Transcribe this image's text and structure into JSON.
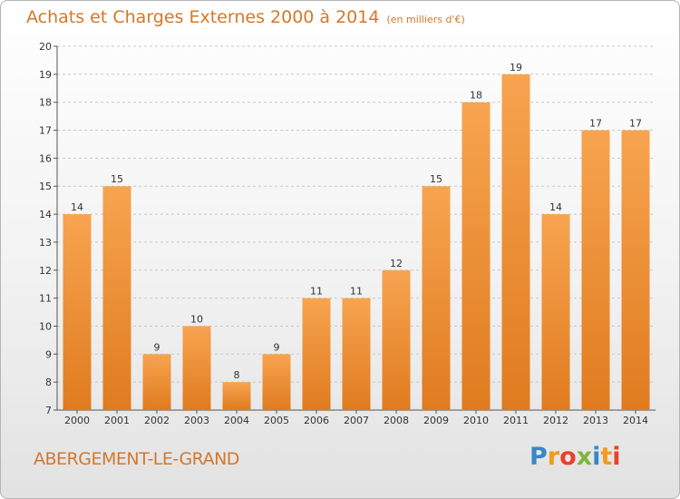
{
  "header": {
    "title": "Achats et Charges Externes 2000 à 2014",
    "subtitle": "(en milliers d'€)"
  },
  "footer": {
    "commune": "ABERGEMENT-LE-GRAND",
    "logo_letters": [
      "P",
      "r",
      "o",
      "x",
      "i",
      "t",
      "i"
    ],
    "logo_colors": [
      "#3a86c8",
      "#f29b1d",
      "#e8412c",
      "#7cb83a",
      "#3a86c8",
      "#f29b1d",
      "#e8412c"
    ]
  },
  "colors": {
    "accent": "#d4782a",
    "bar_top": "#f7a450",
    "bar_bottom": "#e07b1f"
  },
  "chart_data": {
    "type": "bar",
    "title": "Achats et Charges Externes 2000 à 2014",
    "subtitle": "(en milliers d'€)",
    "categories": [
      "2000",
      "2001",
      "2002",
      "2003",
      "2004",
      "2005",
      "2006",
      "2007",
      "2008",
      "2009",
      "2010",
      "2011",
      "2012",
      "2013",
      "2014"
    ],
    "values": [
      14,
      15,
      9,
      10,
      8,
      9,
      11,
      11,
      12,
      15,
      18,
      19,
      14,
      17,
      17
    ],
    "ylim": [
      7,
      20
    ],
    "yticks": [
      7,
      8,
      9,
      10,
      11,
      12,
      13,
      14,
      15,
      16,
      17,
      18,
      19,
      20
    ],
    "grid": true,
    "legend": "none",
    "xlabel": "",
    "ylabel": ""
  }
}
